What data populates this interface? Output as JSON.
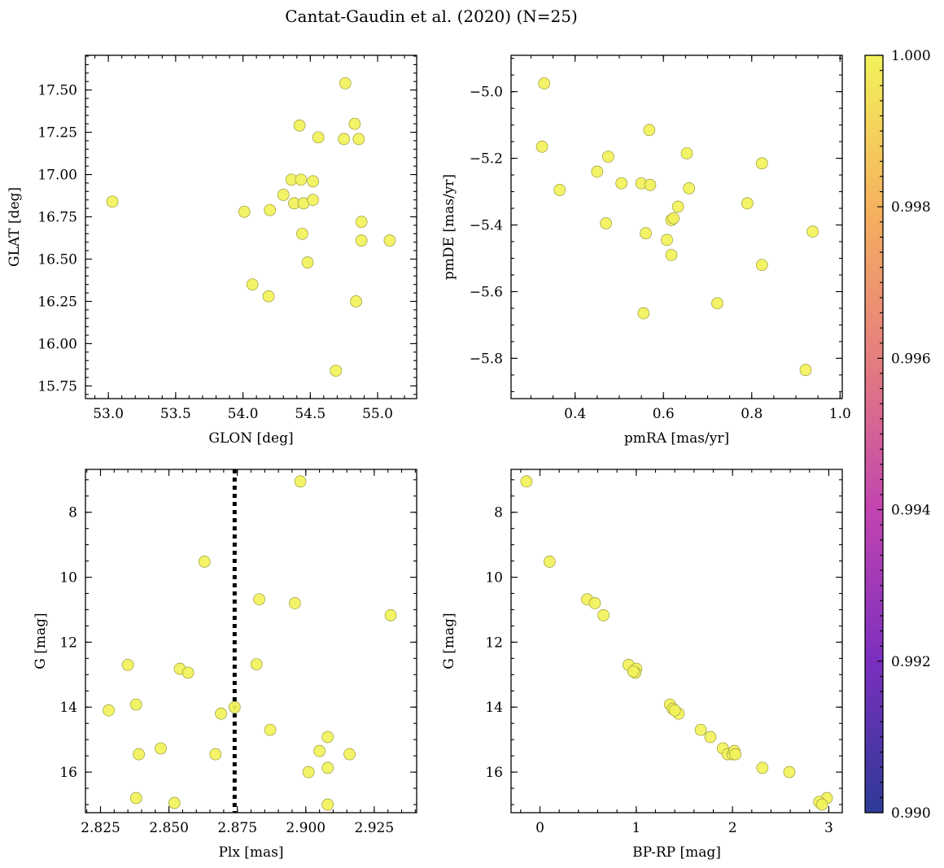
{
  "chart_data": {
    "title": "Cantat-Gaudin et al. (2020) (N=25)",
    "point_color": "#f2f25a",
    "colorbar": {
      "range": [
        0.99,
        1.0
      ],
      "ticks": [
        "0.990",
        "0.992",
        "0.994",
        "0.996",
        "0.998",
        "1.000"
      ],
      "colors": [
        "#2d3a96",
        "#7b2fbf",
        "#c344b0",
        "#e57e7e",
        "#f6b25e",
        "#f2f25a"
      ]
    },
    "panels": [
      {
        "id": "glon-glat",
        "type": "scatter",
        "xlabel": "GLON [deg]",
        "ylabel": "GLAT [deg]",
        "xlim": [
          52.83,
          55.29
        ],
        "ylim": [
          15.675,
          17.705
        ],
        "y_inverted": false,
        "xticks": [
          53.0,
          53.5,
          54.0,
          54.5,
          55.0
        ],
        "xtick_labels": [
          "53.0",
          "53.5",
          "54.0",
          "54.5",
          "55.0"
        ],
        "yticks": [
          15.75,
          16.0,
          16.25,
          16.5,
          16.75,
          17.0,
          17.25,
          17.5
        ],
        "ytick_labels": [
          "15.75",
          "16.00",
          "16.25",
          "16.50",
          "16.75",
          "17.00",
          "17.25",
          "17.50"
        ],
        "xminor": 0.1,
        "yminor": 0.05,
        "points": [
          [
            53.03,
            16.84
          ],
          [
            54.01,
            16.78
          ],
          [
            54.2,
            16.79
          ],
          [
            54.3,
            16.88
          ],
          [
            54.36,
            16.97
          ],
          [
            54.38,
            16.83
          ],
          [
            54.43,
            16.97
          ],
          [
            54.45,
            16.83
          ],
          [
            54.52,
            16.96
          ],
          [
            54.52,
            16.85
          ],
          [
            54.42,
            17.29
          ],
          [
            54.56,
            17.22
          ],
          [
            54.75,
            17.21
          ],
          [
            54.76,
            17.54
          ],
          [
            54.83,
            17.3
          ],
          [
            54.86,
            17.21
          ],
          [
            54.88,
            16.72
          ],
          [
            54.88,
            16.61
          ],
          [
            55.09,
            16.61
          ],
          [
            54.44,
            16.65
          ],
          [
            54.48,
            16.48
          ],
          [
            54.07,
            16.35
          ],
          [
            54.19,
            16.28
          ],
          [
            54.84,
            16.25
          ],
          [
            54.69,
            15.84
          ]
        ]
      },
      {
        "id": "pmra-pmde",
        "type": "scatter",
        "xlabel": "pmRA [mas/yr]",
        "ylabel": "pmDE [mas/yr]",
        "xlim": [
          0.255,
          1.005
        ],
        "ylim": [
          -5.921,
          -4.891
        ],
        "y_inverted": false,
        "xticks": [
          0.4,
          0.6,
          0.8,
          1.0
        ],
        "xtick_labels": [
          "0.4",
          "0.6",
          "0.8",
          "1.0"
        ],
        "yticks": [
          -5.8,
          -5.6,
          -5.4,
          -5.2,
          -5.0
        ],
        "ytick_labels": [
          "−5.8",
          "−5.6",
          "−5.4",
          "−5.2",
          "−5.0"
        ],
        "xminor": 0.05,
        "yminor": 0.05,
        "points": [
          [
            0.33,
            -4.975
          ],
          [
            0.325,
            -5.165
          ],
          [
            0.365,
            -5.295
          ],
          [
            0.45,
            -5.24
          ],
          [
            0.475,
            -5.195
          ],
          [
            0.505,
            -5.275
          ],
          [
            0.47,
            -5.395
          ],
          [
            0.55,
            -5.275
          ],
          [
            0.57,
            -5.28
          ],
          [
            0.568,
            -5.115
          ],
          [
            0.653,
            -5.185
          ],
          [
            0.823,
            -5.215
          ],
          [
            0.633,
            -5.345
          ],
          [
            0.658,
            -5.29
          ],
          [
            0.618,
            -5.385
          ],
          [
            0.623,
            -5.38
          ],
          [
            0.79,
            -5.335
          ],
          [
            0.56,
            -5.425
          ],
          [
            0.608,
            -5.445
          ],
          [
            0.618,
            -5.49
          ],
          [
            0.938,
            -5.42
          ],
          [
            0.823,
            -5.52
          ],
          [
            0.555,
            -5.665
          ],
          [
            0.722,
            -5.635
          ],
          [
            0.922,
            -5.835
          ]
        ]
      },
      {
        "id": "plx-g",
        "type": "scatter",
        "xlabel": "Plx [mas]",
        "ylabel": "G [mag]",
        "xlim": [
          2.8195,
          2.9405
        ],
        "ylim": [
          6.68,
          17.25
        ],
        "y_inverted": true,
        "xticks": [
          2.825,
          2.85,
          2.875,
          2.9,
          2.925
        ],
        "xtick_labels": [
          "2.825",
          "2.850",
          "2.875",
          "2.900",
          "2.925"
        ],
        "yticks": [
          8,
          10,
          12,
          14,
          16
        ],
        "ytick_labels": [
          "8",
          "10",
          "12",
          "14",
          "16"
        ],
        "xminor": 0.005,
        "yminor": 0.5,
        "vline": 2.874,
        "points": [
          [
            2.898,
            7.05
          ],
          [
            2.863,
            9.52
          ],
          [
            2.883,
            10.68
          ],
          [
            2.896,
            10.8
          ],
          [
            2.931,
            11.17
          ],
          [
            2.835,
            12.7
          ],
          [
            2.854,
            12.82
          ],
          [
            2.857,
            12.94
          ],
          [
            2.882,
            12.68
          ],
          [
            2.828,
            14.1
          ],
          [
            2.838,
            13.92
          ],
          [
            2.869,
            14.2
          ],
          [
            2.874,
            14.0
          ],
          [
            2.887,
            14.7
          ],
          [
            2.908,
            14.92
          ],
          [
            2.847,
            15.27
          ],
          [
            2.839,
            15.45
          ],
          [
            2.867,
            15.45
          ],
          [
            2.905,
            15.35
          ],
          [
            2.916,
            15.45
          ],
          [
            2.908,
            15.87
          ],
          [
            2.901,
            16.0
          ],
          [
            2.838,
            16.8
          ],
          [
            2.852,
            16.95
          ],
          [
            2.908,
            17.0
          ]
        ]
      },
      {
        "id": "bprp-g",
        "type": "scatter",
        "xlabel": "BP-RP [mag]",
        "ylabel": "G [mag]",
        "xlim": [
          -0.3,
          3.14
        ],
        "ylim": [
          6.68,
          17.25
        ],
        "y_inverted": true,
        "xticks": [
          0,
          1,
          2,
          3
        ],
        "xtick_labels": [
          "0",
          "1",
          "2",
          "3"
        ],
        "yticks": [
          8,
          10,
          12,
          14,
          16
        ],
        "ytick_labels": [
          "8",
          "10",
          "12",
          "14",
          "16"
        ],
        "xminor": 0.2,
        "yminor": 0.5,
        "points": [
          [
            -0.14,
            7.05
          ],
          [
            0.1,
            9.52
          ],
          [
            0.49,
            10.68
          ],
          [
            0.57,
            10.8
          ],
          [
            0.66,
            11.17
          ],
          [
            0.92,
            12.7
          ],
          [
            1.0,
            12.82
          ],
          [
            0.99,
            12.94
          ],
          [
            1.35,
            13.92
          ],
          [
            1.38,
            14.05
          ],
          [
            1.44,
            14.2
          ],
          [
            1.67,
            14.7
          ],
          [
            1.77,
            14.92
          ],
          [
            1.9,
            15.27
          ],
          [
            1.95,
            15.45
          ],
          [
            2.0,
            15.45
          ],
          [
            2.02,
            15.35
          ],
          [
            2.31,
            15.87
          ],
          [
            2.59,
            16.0
          ],
          [
            2.98,
            16.8
          ],
          [
            2.9,
            16.92
          ],
          [
            2.93,
            17.0
          ],
          [
            2.03,
            15.45
          ],
          [
            1.4,
            14.1
          ],
          [
            0.97,
            12.9
          ]
        ]
      }
    ]
  }
}
